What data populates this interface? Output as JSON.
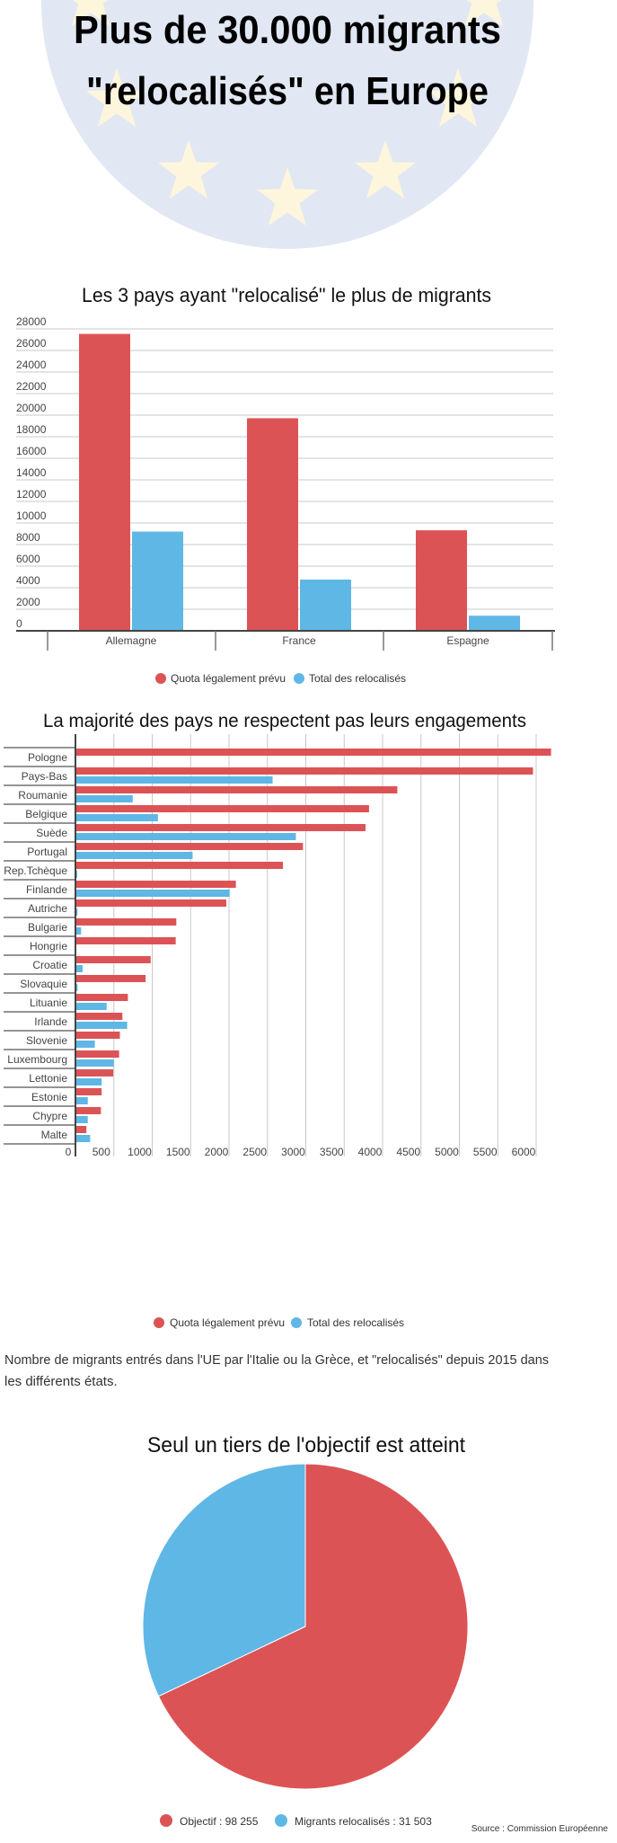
{
  "header": {
    "title_line1": "Plus de 30.000 migrants",
    "title_line2": "\"relocalisés\" en Europe",
    "colors": {
      "circle": "#e1e7f3",
      "stars": "#fdf6dc"
    }
  },
  "colors": {
    "quota": "#dc5356",
    "relocated": "#5fb7e5"
  },
  "chart_data": [
    {
      "type": "bar",
      "title": "Les 3 pays ayant \"relocalisé\" le plus de migrants",
      "categories": [
        "Allemagne",
        "France",
        "Espagne"
      ],
      "series": [
        {
          "name": "Quota légalement prévu",
          "values": [
            27536,
            19714,
            9323
          ]
        },
        {
          "name": "Total des relocalisés",
          "values": [
            9200,
            4750,
            1400
          ]
        }
      ],
      "yticks": [
        0,
        2000,
        4000,
        6000,
        8000,
        10000,
        12000,
        14000,
        16000,
        18000,
        20000,
        22000,
        24000,
        26000,
        28000
      ],
      "ylim": [
        0,
        28000
      ],
      "grid": true,
      "legend": "bottom"
    },
    {
      "type": "bar",
      "orientation": "horizontal",
      "title": "La majorité des pays ne respectent pas leurs engagements",
      "categories": [
        "Pologne",
        "Pays-Bas",
        "Roumanie",
        "Belgique",
        "Suède",
        "Portugal",
        "Rep.Tchèque",
        "Finlande",
        "Autriche",
        "Bulgarie",
        "Hongrie",
        "Croatie",
        "Slovaquie",
        "Lituanie",
        "Irlande",
        "Slovenie",
        "Luxembourg",
        "Lettonie",
        "Estonie",
        "Chypre",
        "Malte"
      ],
      "series": [
        {
          "name": "Quota légalement prévu",
          "values": [
            6182,
            5947,
            4180,
            3812,
            3766,
            2951,
            2691,
            2078,
            1953,
            1302,
            1294,
            968,
            902,
            671,
            600,
            567,
            557,
            481,
            329,
            320,
            131
          ]
        },
        {
          "name": "Total des relocalisés",
          "values": [
            0,
            2556,
            734,
            1063,
            2859,
            1514,
            12,
            1997,
            15,
            62,
            0,
            82,
            16,
            395,
            662,
            241,
            488,
            329,
            149,
            149,
            180
          ]
        }
      ],
      "xticks": [
        0,
        500,
        1000,
        1500,
        2000,
        2500,
        3000,
        3500,
        4000,
        4500,
        5000,
        5500,
        6000
      ],
      "xlim": [
        0,
        6300
      ],
      "grid": true,
      "legend": "bottom"
    },
    {
      "type": "pie",
      "title": "Seul un tiers de l'objectif est atteint",
      "slices": [
        {
          "label": "Objectif : 98 255",
          "value": 98255,
          "color": "#dc5356"
        },
        {
          "label": "Migrants relocalisés : 31 503",
          "value": 31503,
          "color": "#5fb7e5"
        }
      ],
      "legend": "bottom"
    }
  ],
  "caption": {
    "line1": "Nombre de migrants entrés dans l'UE par l'Italie ou la Grèce, et \"relocalisés\" depuis 2015 dans",
    "line2": "les différents états."
  },
  "source": "Source : Commission Européenne"
}
